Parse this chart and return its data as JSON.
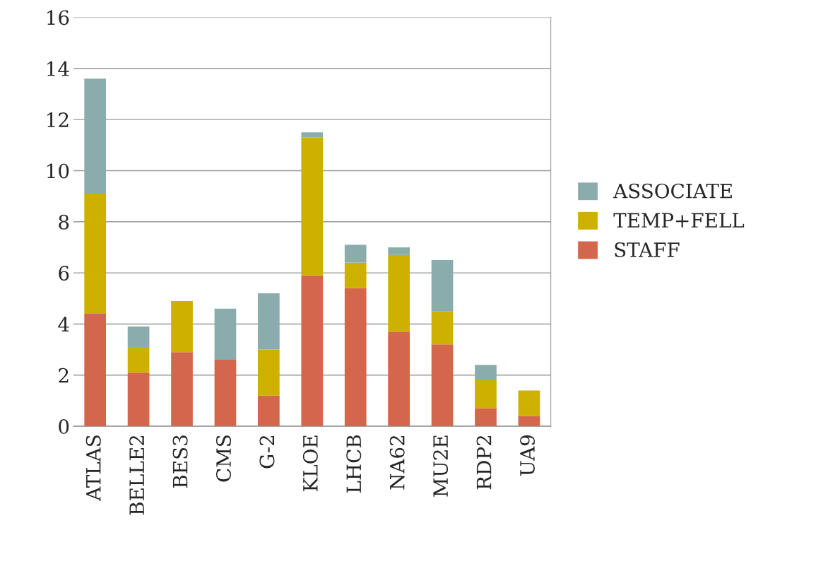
{
  "chart_data": {
    "type": "bar",
    "stacked": true,
    "categories": [
      "ATLAS",
      "BELLE2",
      "BES3",
      "CMS",
      "G-2",
      "KLOE",
      "LHCB",
      "NA62",
      "MU2E",
      "RDP2",
      "UA9"
    ],
    "series": [
      {
        "name": "STAFF",
        "color": "#d4674b",
        "values": [
          4.4,
          2.1,
          2.9,
          2.6,
          1.2,
          5.9,
          5.4,
          3.7,
          3.2,
          0.7,
          0.4
        ]
      },
      {
        "name": "TEMP+FELL",
        "color": "#cdb000",
        "values": [
          4.7,
          1.0,
          2.0,
          0,
          1.8,
          5.4,
          1.0,
          3.0,
          1.3,
          1.1,
          1.0
        ]
      },
      {
        "name": "ASSOCIATE",
        "color": "#8aacac",
        "values": [
          4.5,
          0.8,
          0,
          2.0,
          2.2,
          0.2,
          0.7,
          0.3,
          2.0,
          0.6,
          0
        ]
      }
    ],
    "ylim": [
      0,
      16
    ],
    "yticks": [
      0,
      2,
      4,
      6,
      8,
      10,
      12,
      14,
      16
    ],
    "grid": "y",
    "legend": "right"
  }
}
